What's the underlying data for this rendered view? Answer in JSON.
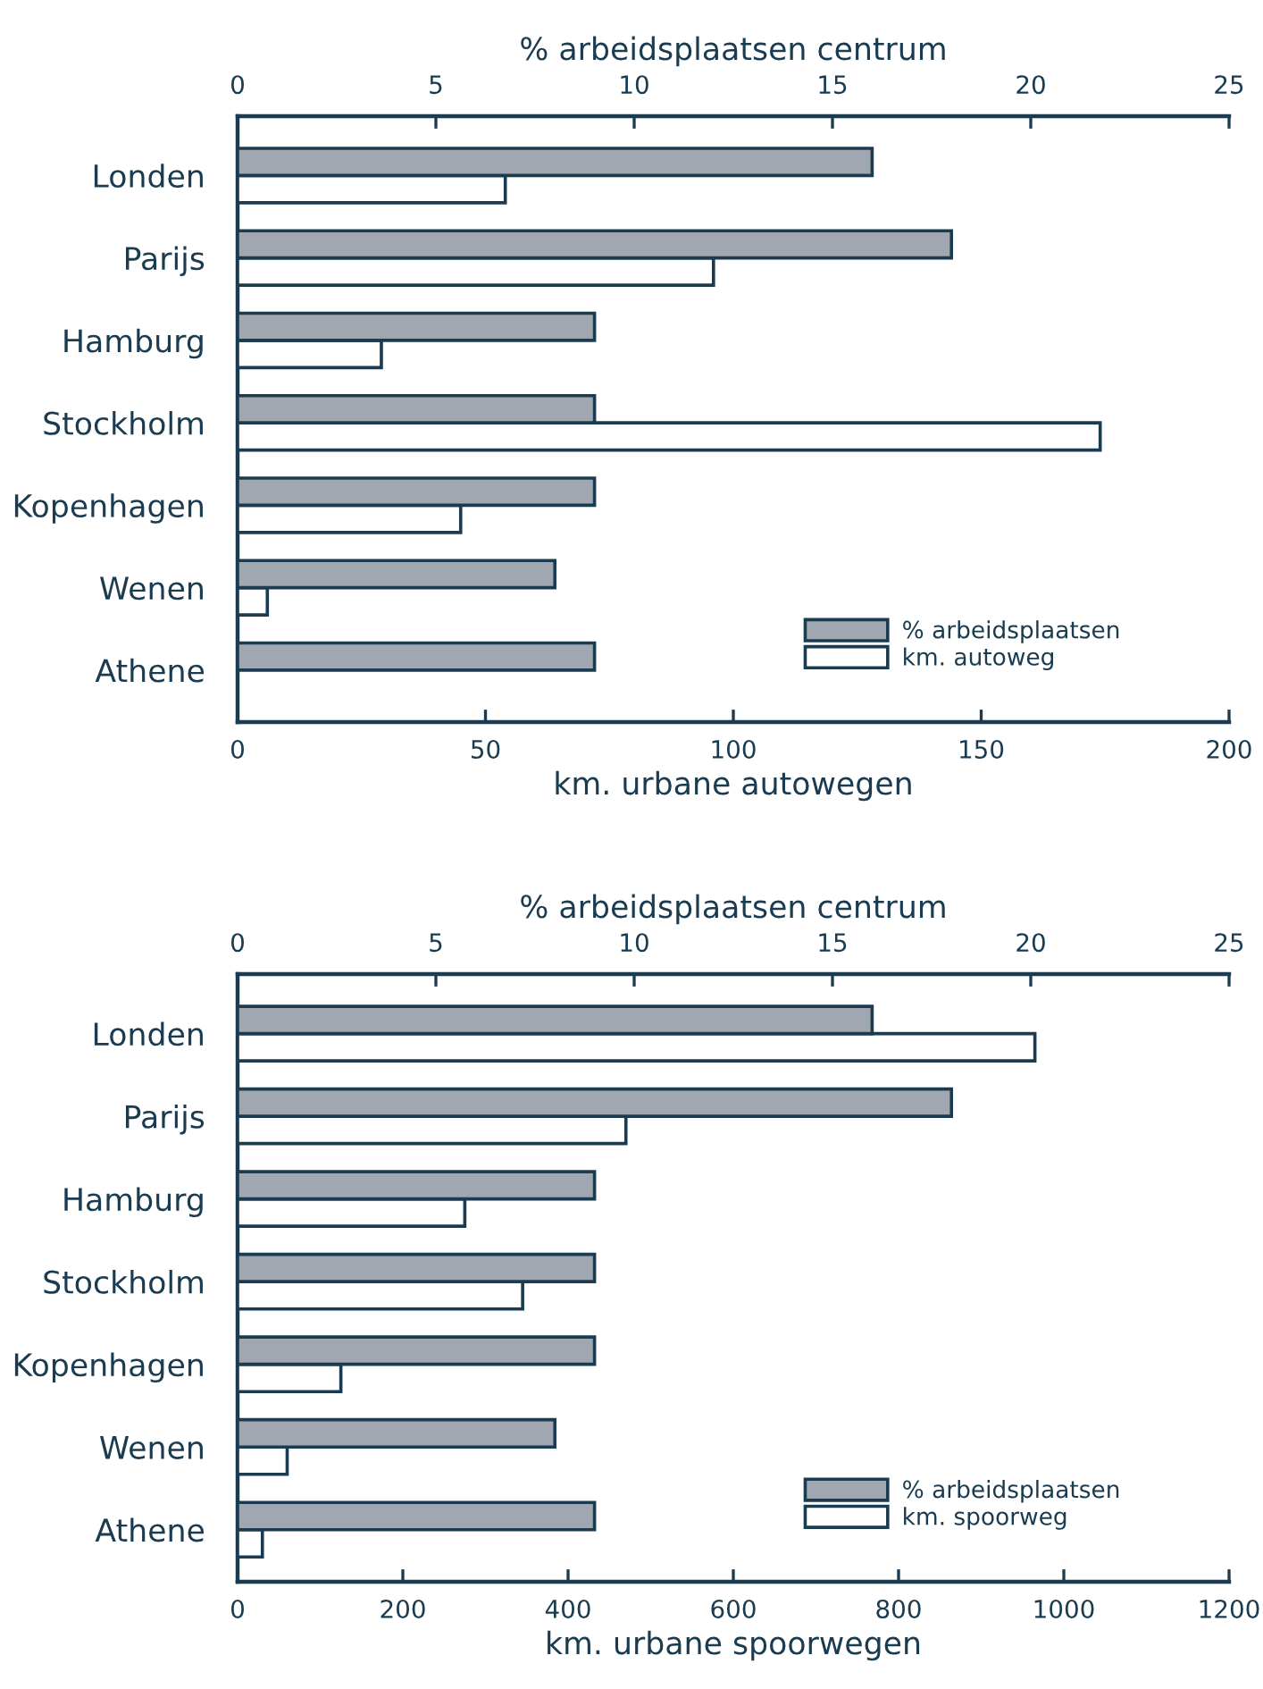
{
  "chart_data": [
    {
      "type": "bar",
      "orientation": "horizontal",
      "x2label": "% arbeidsplaatsen centrum",
      "xlabel": "km. urbane autowegen",
      "categories": [
        "Londen",
        "Parijs",
        "Hamburg",
        "Stockholm",
        "Kopenhagen",
        "Wenen",
        "Athene"
      ],
      "series": [
        {
          "name": "% arbeidsplaatsen",
          "color": "#a0a7b1",
          "axis": "x2",
          "values": [
            16,
            18,
            9,
            9,
            9,
            8,
            9
          ]
        },
        {
          "name": "km. autoweg",
          "color": "#ffffff",
          "values": [
            54,
            96,
            29,
            174,
            45,
            6,
            null
          ]
        }
      ],
      "xlim": [
        0,
        200
      ],
      "xticks": [
        0,
        50,
        100,
        150,
        200
      ],
      "x2lim": [
        0,
        25
      ],
      "x2ticks": [
        0,
        5,
        10,
        15,
        20,
        25
      ],
      "legend": "lower right"
    },
    {
      "type": "bar",
      "orientation": "horizontal",
      "x2label": "% arbeidsplaatsen centrum",
      "xlabel": "km. urbane spoorwegen",
      "categories": [
        "Londen",
        "Parijs",
        "Hamburg",
        "Stockholm",
        "Kopenhagen",
        "Wenen",
        "Athene"
      ],
      "series": [
        {
          "name": "% arbeidsplaatsen",
          "color": "#a0a7b1",
          "axis": "x2",
          "values": [
            16,
            18,
            9,
            9,
            9,
            8,
            9
          ]
        },
        {
          "name": "km. spoorweg",
          "color": "#ffffff",
          "values": [
            965,
            470,
            275,
            345,
            125,
            60,
            30
          ]
        }
      ],
      "xlim": [
        0,
        1200
      ],
      "xticks": [
        0,
        200,
        400,
        600,
        800,
        1000,
        1200
      ],
      "x2lim": [
        0,
        25
      ],
      "x2ticks": [
        0,
        5,
        10,
        15,
        20,
        25
      ],
      "legend": "lower right"
    }
  ]
}
